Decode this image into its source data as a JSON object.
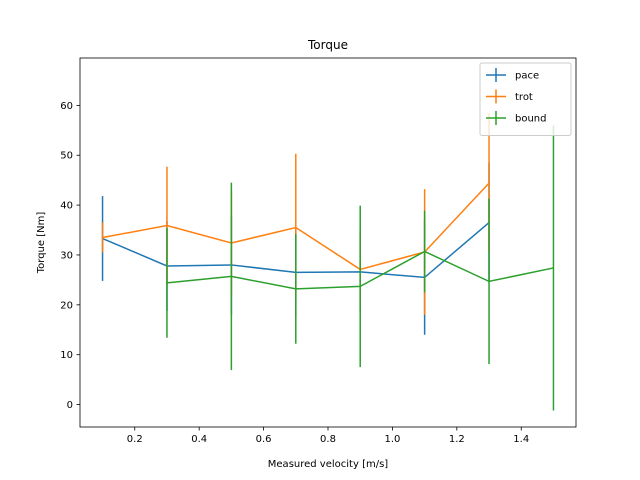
{
  "chart_data": {
    "type": "line",
    "title": "Torque",
    "xlabel": "Measured velocity [m/s]",
    "ylabel": "Torque [Nm]",
    "xlim": [
      0.03,
      1.57
    ],
    "ylim": [
      -4.5,
      69.5
    ],
    "xticks": [
      0.2,
      0.4,
      0.6,
      0.8,
      1.0,
      1.2,
      1.4
    ],
    "xtick_labels": [
      "0.2",
      "0.4",
      "0.6",
      "0.8",
      "1.0",
      "1.2",
      "1.4"
    ],
    "yticks": [
      0,
      10,
      20,
      30,
      40,
      50,
      60
    ],
    "ytick_labels": [
      "0",
      "10",
      "20",
      "30",
      "40",
      "50",
      "60"
    ],
    "grid": false,
    "legend_position": "top-right",
    "series": [
      {
        "name": "pace",
        "color": "#1f77b4",
        "x": [
          0.1,
          0.3,
          0.5,
          0.7,
          0.9,
          1.1,
          1.3
        ],
        "y": [
          33.3,
          27.8,
          28.0,
          26.5,
          26.6,
          25.5,
          36.5
        ],
        "yerr": [
          8.5,
          9.0,
          10.0,
          9.0,
          8.0,
          11.5,
          12.0
        ]
      },
      {
        "name": "trot",
        "color": "#ff7f0e",
        "x": [
          0.1,
          0.3,
          0.5,
          0.7,
          0.9,
          1.1,
          1.3
        ],
        "y": [
          33.5,
          35.9,
          32.4,
          35.5,
          27.1,
          30.6,
          44.4
        ],
        "yerr": [
          3.0,
          11.8,
          10.5,
          14.8,
          8.0,
          12.6,
          14.0
        ]
      },
      {
        "name": "bound",
        "color": "#2ca02c",
        "x": [
          0.3,
          0.5,
          0.7,
          0.9,
          1.1,
          1.3,
          1.5
        ],
        "y": [
          24.4,
          25.7,
          23.2,
          23.7,
          30.7,
          24.7,
          27.4
        ],
        "yerr": [
          11.0,
          18.8,
          11.0,
          16.2,
          8.2,
          16.6,
          28.6
        ]
      }
    ]
  }
}
